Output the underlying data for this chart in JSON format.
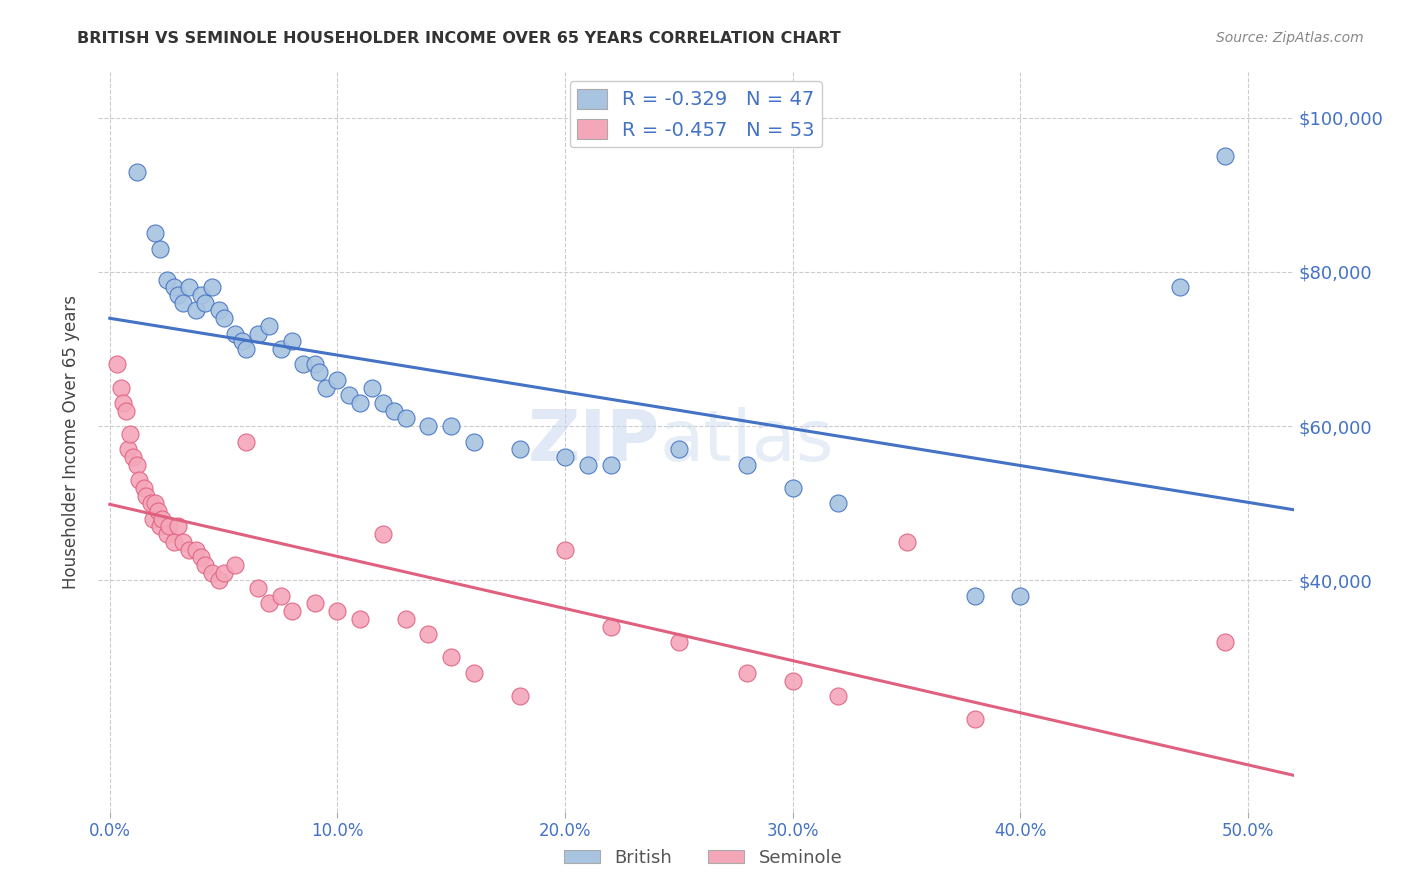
{
  "title": "BRITISH VS SEMINOLE HOUSEHOLDER INCOME OVER 65 YEARS CORRELATION CHART",
  "source": "Source: ZipAtlas.com",
  "ylabel": "Householder Income Over 65 years",
  "xlabel_ticks": [
    "0.0%",
    "10.0%",
    "20.0%",
    "30.0%",
    "40.0%",
    "50.0%"
  ],
  "xlabel_vals": [
    0.0,
    0.1,
    0.2,
    0.3,
    0.4,
    0.5
  ],
  "ylabel_ticks": [
    "$40,000",
    "$60,000",
    "$80,000",
    "$100,000"
  ],
  "ylabel_vals": [
    40000,
    60000,
    80000,
    100000
  ],
  "british_R": -0.329,
  "british_N": 47,
  "seminole_R": -0.457,
  "seminole_N": 53,
  "british_color": "#a8c4e0",
  "seminole_color": "#f4a7b9",
  "british_line_color": "#4472c4",
  "seminole_line_color": "#e06080",
  "watermark_zip": "ZIP",
  "watermark_atlas": "atlas",
  "british_x": [
    0.012,
    0.02,
    0.022,
    0.025,
    0.028,
    0.03,
    0.032,
    0.035,
    0.038,
    0.04,
    0.042,
    0.045,
    0.048,
    0.05,
    0.055,
    0.058,
    0.06,
    0.065,
    0.07,
    0.075,
    0.08,
    0.085,
    0.09,
    0.092,
    0.095,
    0.1,
    0.105,
    0.11,
    0.115,
    0.12,
    0.125,
    0.13,
    0.14,
    0.15,
    0.16,
    0.18,
    0.2,
    0.21,
    0.22,
    0.25,
    0.28,
    0.3,
    0.32,
    0.38,
    0.4,
    0.47,
    0.49
  ],
  "british_y": [
    93000,
    85000,
    83000,
    79000,
    78000,
    77000,
    76000,
    78000,
    75000,
    77000,
    76000,
    78000,
    75000,
    74000,
    72000,
    71000,
    70000,
    72000,
    73000,
    70000,
    71000,
    68000,
    68000,
    67000,
    65000,
    66000,
    64000,
    63000,
    65000,
    63000,
    62000,
    61000,
    60000,
    60000,
    58000,
    57000,
    56000,
    55000,
    55000,
    57000,
    55000,
    52000,
    50000,
    38000,
    38000,
    78000,
    95000
  ],
  "seminole_x": [
    0.003,
    0.005,
    0.006,
    0.007,
    0.008,
    0.009,
    0.01,
    0.012,
    0.013,
    0.015,
    0.016,
    0.018,
    0.019,
    0.02,
    0.021,
    0.022,
    0.023,
    0.025,
    0.026,
    0.028,
    0.03,
    0.032,
    0.035,
    0.038,
    0.04,
    0.042,
    0.045,
    0.048,
    0.05,
    0.055,
    0.06,
    0.065,
    0.07,
    0.075,
    0.08,
    0.09,
    0.1,
    0.11,
    0.12,
    0.13,
    0.14,
    0.15,
    0.16,
    0.18,
    0.2,
    0.22,
    0.25,
    0.28,
    0.3,
    0.32,
    0.35,
    0.38,
    0.49
  ],
  "seminole_y": [
    68000,
    65000,
    63000,
    62000,
    57000,
    59000,
    56000,
    55000,
    53000,
    52000,
    51000,
    50000,
    48000,
    50000,
    49000,
    47000,
    48000,
    46000,
    47000,
    45000,
    47000,
    45000,
    44000,
    44000,
    43000,
    42000,
    41000,
    40000,
    41000,
    42000,
    58000,
    39000,
    37000,
    38000,
    36000,
    37000,
    36000,
    35000,
    46000,
    35000,
    33000,
    30000,
    28000,
    25000,
    44000,
    34000,
    32000,
    28000,
    27000,
    25000,
    45000,
    22000,
    32000
  ],
  "background_color": "#ffffff",
  "plot_bg_color": "#ffffff",
  "grid_color": "#cccccc",
  "title_color": "#333333",
  "tick_color": "#4472c4",
  "ylim": [
    10000,
    106000
  ],
  "xlim": [
    -0.005,
    0.52
  ]
}
